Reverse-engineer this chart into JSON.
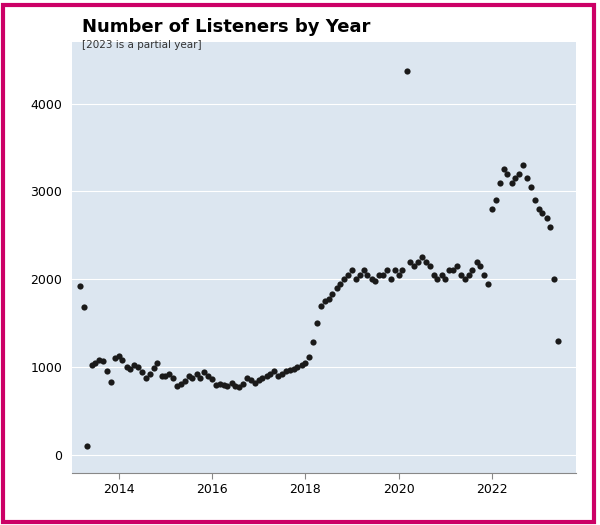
{
  "title": "Number of Listeners by Year",
  "subtitle": "[2023 is a partial year]",
  "background_color": "#dce6f0",
  "outer_background": "#ffffff",
  "border_color": "#cc0066",
  "scatter_color": "#1a1a1a",
  "scatter_size": 20,
  "yticks": [
    0,
    1000,
    2000,
    3000,
    4000
  ],
  "xticks": [
    2014,
    2016,
    2018,
    2020,
    2022
  ],
  "ylim": [
    -200,
    4700
  ],
  "xlim": [
    2013.0,
    2023.8
  ],
  "x": [
    2013.17,
    2013.25,
    2013.33,
    2013.42,
    2013.5,
    2013.58,
    2013.67,
    2013.75,
    2013.83,
    2013.92,
    2014.0,
    2014.08,
    2014.17,
    2014.25,
    2014.33,
    2014.42,
    2014.5,
    2014.58,
    2014.67,
    2014.75,
    2014.83,
    2014.92,
    2015.0,
    2015.08,
    2015.17,
    2015.25,
    2015.33,
    2015.42,
    2015.5,
    2015.58,
    2015.67,
    2015.75,
    2015.83,
    2015.92,
    2016.0,
    2016.08,
    2016.17,
    2016.25,
    2016.33,
    2016.42,
    2016.5,
    2016.58,
    2016.67,
    2016.75,
    2016.83,
    2016.92,
    2017.0,
    2017.08,
    2017.17,
    2017.25,
    2017.33,
    2017.42,
    2017.5,
    2017.58,
    2017.67,
    2017.75,
    2017.83,
    2017.92,
    2018.0,
    2018.08,
    2018.17,
    2018.25,
    2018.33,
    2018.42,
    2018.5,
    2018.58,
    2018.67,
    2018.75,
    2018.83,
    2018.92,
    2019.0,
    2019.08,
    2019.17,
    2019.25,
    2019.33,
    2019.42,
    2019.5,
    2019.58,
    2019.67,
    2019.75,
    2019.83,
    2019.92,
    2020.0,
    2020.08,
    2020.17,
    2020.25,
    2020.33,
    2020.42,
    2020.5,
    2020.58,
    2020.67,
    2020.75,
    2020.83,
    2020.92,
    2021.0,
    2021.08,
    2021.17,
    2021.25,
    2021.33,
    2021.42,
    2021.5,
    2021.58,
    2021.67,
    2021.75,
    2021.83,
    2021.92,
    2022.0,
    2022.08,
    2022.17,
    2022.25,
    2022.33,
    2022.42,
    2022.5,
    2022.58,
    2022.67,
    2022.75,
    2022.83,
    2022.92,
    2023.0,
    2023.08,
    2023.17,
    2023.25,
    2023.33,
    2023.42
  ],
  "y": [
    1920,
    1680,
    100,
    1020,
    1050,
    1080,
    1070,
    960,
    830,
    1100,
    1130,
    1080,
    1000,
    980,
    1020,
    1000,
    940,
    870,
    920,
    990,
    1050,
    900,
    900,
    920,
    880,
    780,
    810,
    840,
    900,
    870,
    920,
    870,
    940,
    900,
    860,
    800,
    810,
    800,
    790,
    820,
    780,
    770,
    810,
    870,
    850,
    820,
    850,
    880,
    900,
    920,
    950,
    900,
    920,
    960,
    970,
    980,
    1000,
    1020,
    1050,
    1120,
    1280,
    1500,
    1700,
    1750,
    1780,
    1830,
    1900,
    1950,
    2000,
    2050,
    2100,
    2000,
    2050,
    2100,
    2050,
    2000,
    1980,
    2050,
    2050,
    2100,
    2000,
    2100,
    2050,
    2100,
    4370,
    2200,
    2150,
    2200,
    2250,
    2200,
    2150,
    2050,
    2000,
    2050,
    2000,
    2100,
    2100,
    2150,
    2050,
    2000,
    2050,
    2100,
    2200,
    2150,
    2050,
    1950,
    2800,
    2900,
    3100,
    3250,
    3200,
    3100,
    3150,
    3200,
    3300,
    3150,
    3050,
    2900,
    2800,
    2750,
    2700,
    2600,
    2000,
    1300
  ]
}
